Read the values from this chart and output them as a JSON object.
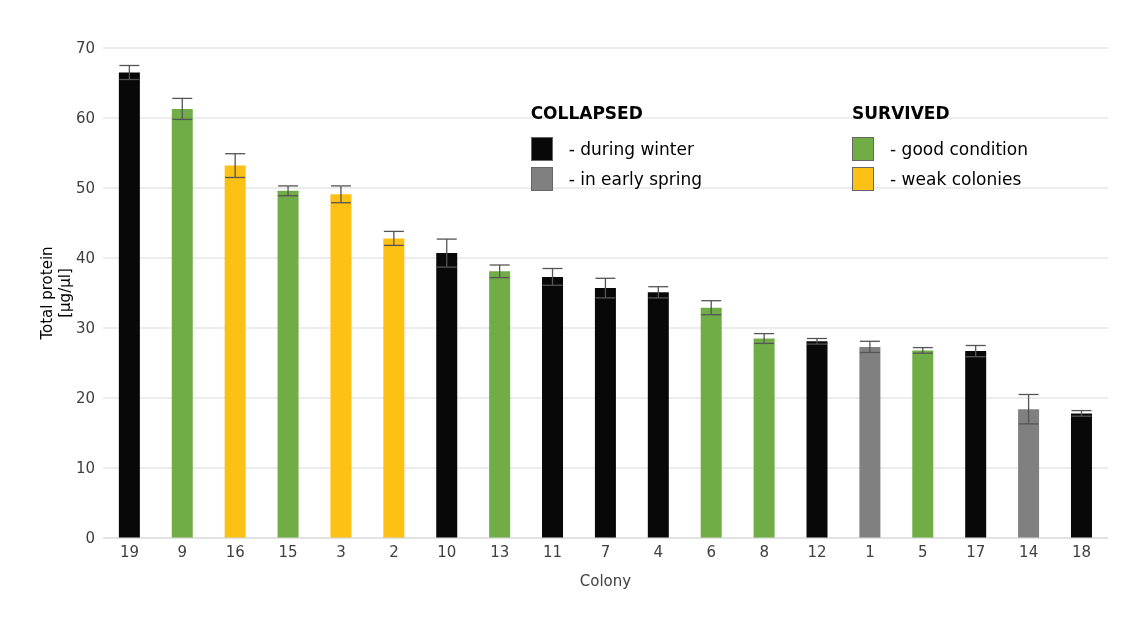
{
  "chart_data": {
    "type": "bar",
    "stacked": true,
    "xlabel": "Colony",
    "ylabel": "Total protein [μg/μl]",
    "categories": [
      "19",
      "9",
      "16",
      "15",
      "3",
      "2",
      "10",
      "13",
      "11",
      "7",
      "4",
      "6",
      "8",
      "12",
      "1",
      "5",
      "17",
      "14",
      "18"
    ],
    "series": [
      {
        "name": "- during winter",
        "color": "#080808",
        "values": [
          66.5,
          null,
          null,
          null,
          null,
          null,
          40.7,
          null,
          37.3,
          35.7,
          35.1,
          null,
          null,
          28.1,
          null,
          null,
          26.7,
          null,
          17.8
        ],
        "errors": [
          1.0,
          null,
          null,
          null,
          null,
          null,
          2.0,
          null,
          1.2,
          1.4,
          0.8,
          null,
          null,
          0.4,
          null,
          null,
          0.8,
          null,
          0.4
        ]
      },
      {
        "name": "- in early spring",
        "color": "#808080",
        "values": [
          null,
          null,
          null,
          null,
          null,
          null,
          null,
          null,
          null,
          null,
          null,
          null,
          null,
          null,
          27.3,
          null,
          null,
          18.4,
          null
        ],
        "errors": [
          null,
          null,
          null,
          null,
          null,
          null,
          null,
          null,
          null,
          null,
          null,
          null,
          null,
          null,
          0.8,
          null,
          null,
          2.1,
          null
        ]
      },
      {
        "name": "- good condition",
        "color": "#70ad47",
        "values": [
          null,
          61.3,
          null,
          49.6,
          null,
          null,
          null,
          38.1,
          null,
          null,
          null,
          32.9,
          28.5,
          null,
          null,
          26.8,
          null,
          null,
          null
        ],
        "errors": [
          null,
          1.5,
          null,
          0.7,
          null,
          null,
          null,
          0.9,
          null,
          null,
          null,
          1.0,
          0.7,
          null,
          null,
          0.4,
          null,
          null,
          null
        ]
      },
      {
        "name": "- weak colonies",
        "color": "#fdc015",
        "values": [
          null,
          null,
          53.2,
          null,
          49.1,
          42.8,
          null,
          null,
          null,
          null,
          null,
          null,
          null,
          null,
          null,
          null,
          null,
          null,
          null
        ],
        "errors": [
          null,
          null,
          1.7,
          null,
          1.2,
          1.0,
          null,
          null,
          null,
          null,
          null,
          null,
          null,
          null,
          null,
          null,
          null,
          null,
          null
        ]
      }
    ],
    "annotations": [
      "COLLAPSED",
      "SURVIVED"
    ],
    "ylim": [
      0,
      70
    ],
    "yticks": [
      0,
      10,
      20,
      30,
      40,
      50,
      60,
      70
    ],
    "grid": "y",
    "legend": "top right"
  }
}
